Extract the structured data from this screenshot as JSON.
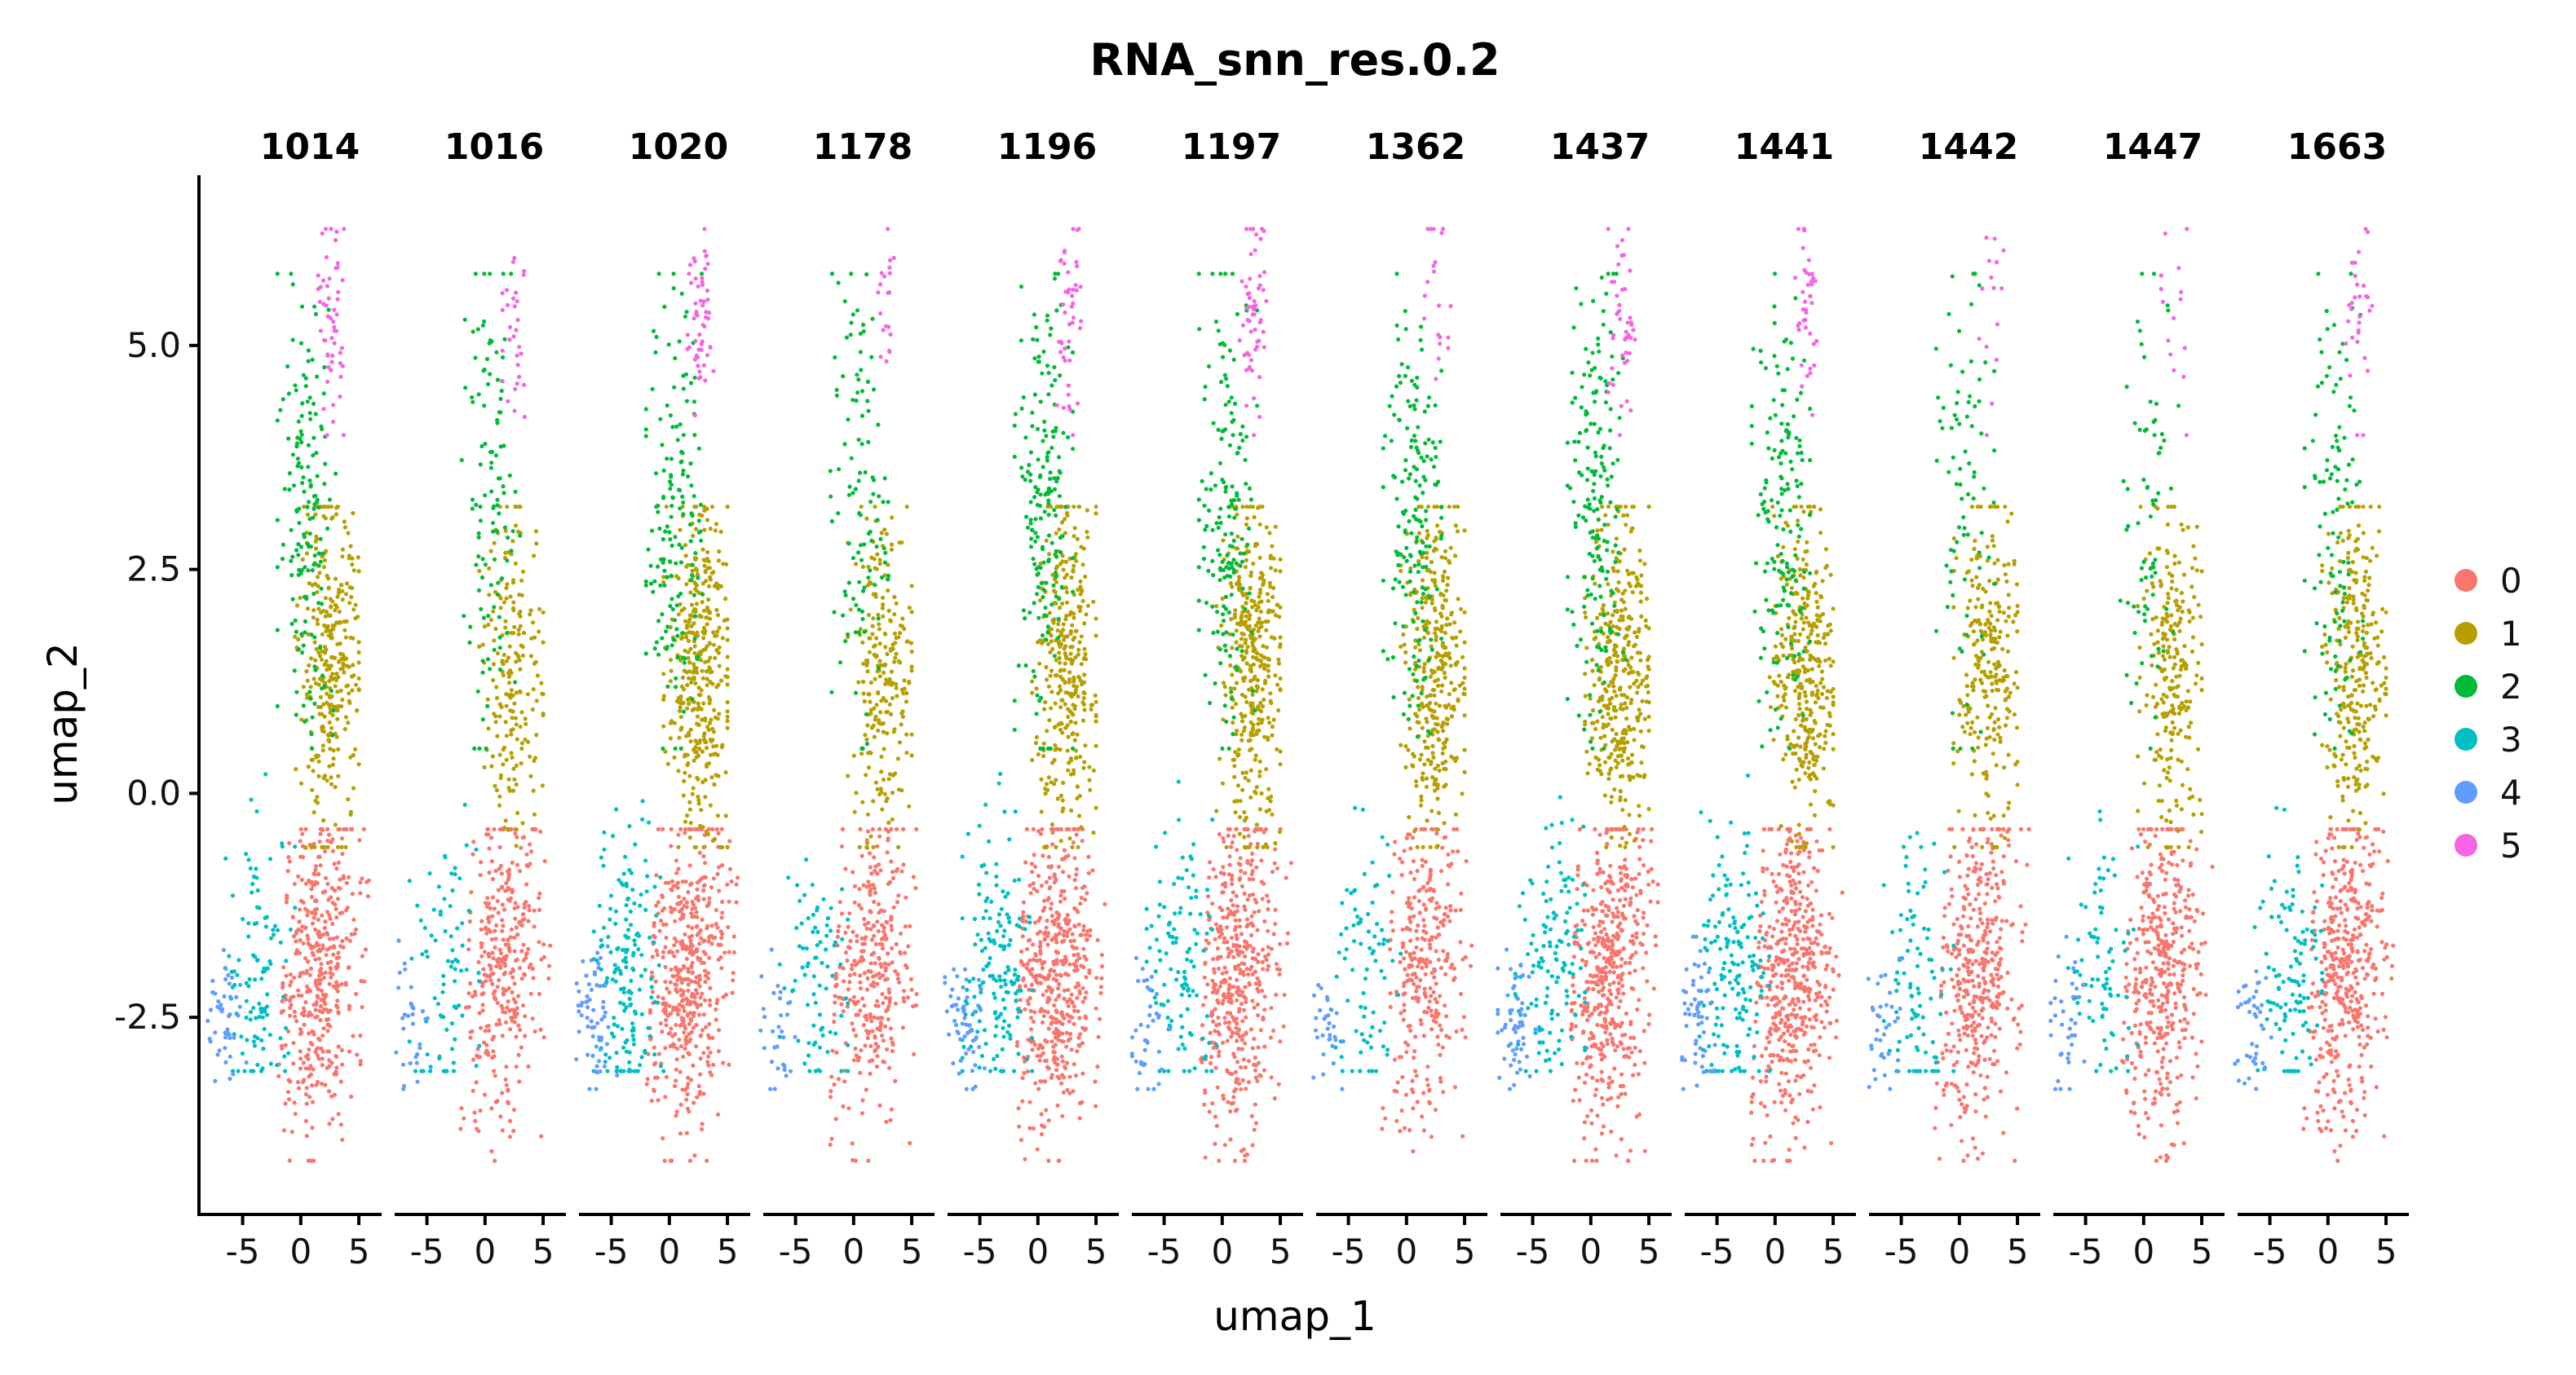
{
  "chart_data": {
    "type": "scatter",
    "title": "RNA_snn_res.0.2",
    "xlabel": "umap_1",
    "ylabel": "umap_2",
    "xlim": [
      -8.2,
      6.4
    ],
    "ylim": [
      -4.7,
      6.9
    ],
    "x_ticks": [
      {
        "value": -5,
        "label": "-5"
      },
      {
        "value": 0,
        "label": "0"
      },
      {
        "value": 5,
        "label": "5"
      }
    ],
    "y_ticks": [
      {
        "value": -2.5,
        "label": "-2.5"
      },
      {
        "value": 0,
        "label": "0.0"
      },
      {
        "value": 2.5,
        "label": "2.5"
      },
      {
        "value": 5,
        "label": "5.0"
      }
    ],
    "facets": [
      "1014",
      "1016",
      "1020",
      "1178",
      "1196",
      "1197",
      "1362",
      "1437",
      "1441",
      "1442",
      "1447",
      "1663"
    ],
    "legend": {
      "position": "right",
      "entries": [
        {
          "label": "0",
          "color": "#F8766D"
        },
        {
          "label": "1",
          "color": "#B79F00"
        },
        {
          "label": "2",
          "color": "#00BA38"
        },
        {
          "label": "3",
          "color": "#00BFC4"
        },
        {
          "label": "4",
          "color": "#619CFF"
        },
        {
          "label": "5",
          "color": "#F564E3"
        }
      ]
    },
    "clusters": [
      {
        "name": "0",
        "color": "#F8766D",
        "x_range": [
          -1.5,
          5.5
        ],
        "y_range": [
          -4.1,
          -0.4
        ],
        "center": [
          1.5,
          -2.0
        ]
      },
      {
        "name": "1",
        "color": "#B79F00",
        "x_range": [
          -0.5,
          5.0
        ],
        "y_range": [
          -0.6,
          3.2
        ],
        "center": [
          2.5,
          1.4
        ]
      },
      {
        "name": "2",
        "color": "#00BA38",
        "x_range": [
          -2.0,
          3.0
        ],
        "y_range": [
          0.5,
          5.8
        ],
        "center": [
          0.5,
          3.2
        ]
      },
      {
        "name": "3",
        "color": "#00BFC4",
        "x_range": [
          -6.5,
          -0.5
        ],
        "y_range": [
          -3.1,
          0.3
        ],
        "center": [
          -3.5,
          -2.0
        ]
      },
      {
        "name": "4",
        "color": "#619CFF",
        "x_range": [
          -8.0,
          -4.5
        ],
        "y_range": [
          -3.3,
          -1.6
        ],
        "center": [
          -6.5,
          -2.6
        ]
      },
      {
        "name": "5",
        "color": "#F564E3",
        "x_range": [
          1.5,
          3.8
        ],
        "y_range": [
          4.0,
          6.3
        ],
        "center": [
          2.7,
          5.3
        ]
      }
    ],
    "facet_counts": [
      {
        "facet": "1014",
        "counts": [
          430,
          330,
          160,
          110,
          45,
          55
        ]
      },
      {
        "facet": "1016",
        "counts": [
          340,
          200,
          110,
          80,
          30,
          30
        ]
      },
      {
        "facet": "1020",
        "counts": [
          470,
          380,
          160,
          170,
          60,
          55
        ]
      },
      {
        "facet": "1178",
        "counts": [
          330,
          230,
          110,
          80,
          30,
          20
        ]
      },
      {
        "facet": "1196",
        "counts": [
          480,
          330,
          180,
          160,
          55,
          45
        ]
      },
      {
        "facet": "1197",
        "counts": [
          440,
          370,
          170,
          110,
          40,
          60
        ]
      },
      {
        "facet": "1362",
        "counts": [
          300,
          340,
          170,
          80,
          30,
          20
        ]
      },
      {
        "facet": "1437",
        "counts": [
          470,
          360,
          180,
          130,
          55,
          45
        ]
      },
      {
        "facet": "1441",
        "counts": [
          480,
          340,
          160,
          160,
          55,
          40
        ]
      },
      {
        "facet": "1442",
        "counts": [
          400,
          250,
          80,
          90,
          35,
          15
        ]
      },
      {
        "facet": "1447",
        "counts": [
          400,
          240,
          70,
          80,
          35,
          15
        ]
      },
      {
        "facet": "1663",
        "counts": [
          430,
          280,
          110,
          110,
          40,
          30
        ]
      }
    ],
    "grid": false
  }
}
